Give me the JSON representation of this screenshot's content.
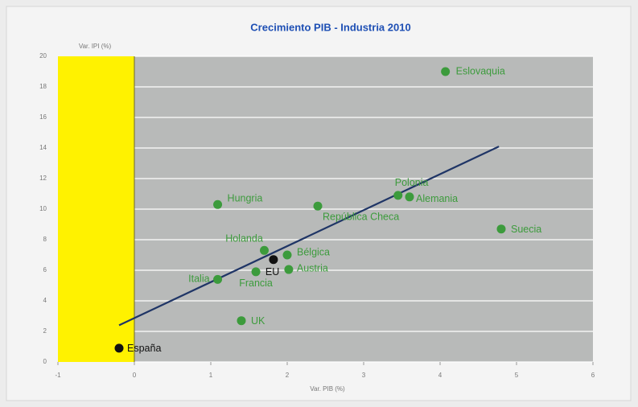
{
  "chart_data": {
    "type": "scatter",
    "title": "Crecimiento PIB - Industria 2010",
    "x_label": "Var. PIB (%)",
    "y_label": "Var. IPI (%)",
    "labels": [
      "Eslovaquia",
      "Hungria",
      "República Checa",
      "Polonia",
      "Alemania",
      "Suecia",
      "Holanda",
      "Bélgica",
      "EU",
      "Austria",
      "Francia",
      "Italia",
      "UK",
      "España"
    ],
    "x": [
      4.07,
      1.09,
      2.4,
      3.45,
      3.6,
      4.8,
      1.7,
      2.0,
      1.82,
      2.02,
      1.59,
      1.09,
      1.4,
      -0.2
    ],
    "values": [
      19.0,
      10.3,
      10.2,
      10.9,
      10.8,
      8.7,
      7.3,
      7.0,
      6.7,
      6.05,
      5.9,
      5.4,
      2.7,
      0.9
    ],
    "colors": [
      "#3c9b3c",
      "#3c9b3c",
      "#3c9b3c",
      "#3c9b3c",
      "#3c9b3c",
      "#3c9b3c",
      "#3c9b3c",
      "#3c9b3c",
      "#111111",
      "#3c9b3c",
      "#3c9b3c",
      "#3c9b3c",
      "#3c9b3c",
      "#111111"
    ],
    "trendline": {
      "x": [
        -0.2,
        4.77
      ],
      "y": [
        2.4,
        14.1
      ],
      "color": "#1f3566"
    },
    "highlight_xrange": [
      -1,
      0
    ],
    "highlight_color": "#fff200",
    "xlim": [
      -1,
      6
    ],
    "ylim": [
      0,
      20
    ],
    "xticks": [
      -1,
      0,
      1,
      2,
      3,
      4,
      5,
      6
    ],
    "yticks": [
      0,
      2,
      4,
      6,
      8,
      10,
      12,
      14,
      16,
      18,
      20
    ],
    "grid": true
  }
}
